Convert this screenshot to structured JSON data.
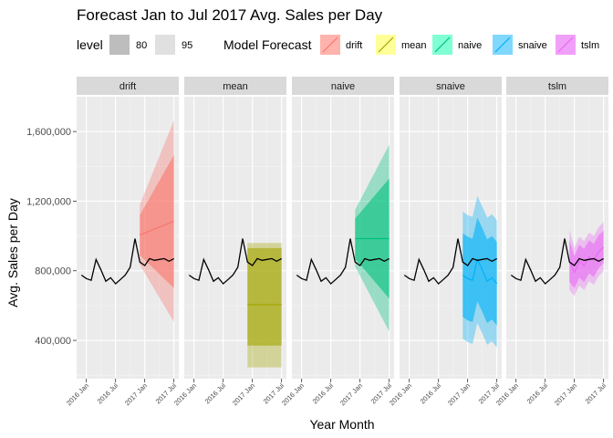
{
  "chart_data": {
    "type": "line",
    "title": "Forecast Jan to Jul 2017 Avg. Sales per Day",
    "xlabel": "Year Month",
    "ylabel": "Avg. Sales per Day",
    "ylim": [
      180000,
      1800000
    ],
    "y_ticks": [
      400000,
      800000,
      1200000,
      1600000
    ],
    "y_tick_labels": [
      "400,000",
      "800,000",
      "1,200,000",
      "1,600,000"
    ],
    "x_ticks": [
      "2016-01",
      "2016-07",
      "2017-01",
      "2017-07"
    ],
    "x_tick_labels": [
      "2016 Jan",
      "2016 Jul",
      "2017 Jan",
      "2017 Jul"
    ],
    "grid": true,
    "legend": {
      "placement": "top",
      "level_title": "level",
      "levels": [
        {
          "label": "80",
          "color": "#bdbdbd"
        },
        {
          "label": "95",
          "color": "#e0e0e0"
        }
      ],
      "model_title": "Model Forecast",
      "models": [
        {
          "label": "drift",
          "color": "#f8766d",
          "fill": "#ffb3ad"
        },
        {
          "label": "mean",
          "color": "#a3a500",
          "fill": "#ffff99"
        },
        {
          "label": "naive",
          "color": "#00bf7d",
          "fill": "#80ffd4"
        },
        {
          "label": "snaive",
          "color": "#00b0f6",
          "fill": "#80d8ff"
        },
        {
          "label": "tslm",
          "color": "#e76bf3",
          "fill": "#f0a0f8"
        }
      ]
    },
    "facets": [
      "drift",
      "mean",
      "naive",
      "snaive",
      "tslm"
    ],
    "history": {
      "x": [
        "2015-12",
        "2016-01",
        "2016-02",
        "2016-03",
        "2016-04",
        "2016-05",
        "2016-06",
        "2016-07",
        "2016-08",
        "2016-09",
        "2016-10",
        "2016-11",
        "2016-12"
      ],
      "values": [
        775000,
        755000,
        745000,
        865000,
        805000,
        740000,
        760000,
        725000,
        750000,
        775000,
        820000,
        985000,
        850000
      ]
    },
    "actual": {
      "x": [
        "2016-12",
        "2017-01",
        "2017-02",
        "2017-03",
        "2017-04",
        "2017-05",
        "2017-06",
        "2017-07"
      ],
      "values": [
        850000,
        830000,
        870000,
        860000,
        865000,
        870000,
        855000,
        870000
      ]
    },
    "forecasts": [
      {
        "name": "drift",
        "x": [
          "2016-12",
          "2017-07"
        ],
        "mean": [
          1005000,
          1085000
        ],
        "lo80": [
          890000,
          700000
        ],
        "hi80": [
          1120000,
          1465000
        ],
        "lo95": [
          835000,
          505000
        ],
        "hi95": [
          1180000,
          1665000
        ]
      },
      {
        "name": "mean",
        "x": [
          "2016-12",
          "2017-07"
        ],
        "mean": [
          605000,
          605000
        ],
        "lo80": [
          370000,
          370000
        ],
        "hi80": [
          930000,
          930000
        ],
        "lo95": [
          245000,
          245000
        ],
        "hi95": [
          960000,
          960000
        ]
      },
      {
        "name": "naive",
        "x": [
          "2016-12",
          "2017-07"
        ],
        "mean": [
          985000,
          985000
        ],
        "lo80": [
          870000,
          640000
        ],
        "hi80": [
          1100000,
          1330000
        ],
        "lo95": [
          825000,
          450000
        ],
        "hi95": [
          1150000,
          1525000
        ]
      },
      {
        "name": "snaive",
        "x": [
          "2016-12",
          "2017-01",
          "2017-02",
          "2017-03",
          "2017-04",
          "2017-05",
          "2017-06",
          "2017-07"
        ],
        "mean": [
          775000,
          755000,
          745000,
          865000,
          805000,
          740000,
          760000,
          725000
        ],
        "lo80": [
          535000,
          515000,
          505000,
          625000,
          565000,
          500000,
          520000,
          485000
        ],
        "hi80": [
          1015000,
          995000,
          985000,
          1105000,
          1045000,
          980000,
          1000000,
          965000
        ],
        "lo95": [
          410000,
          390000,
          380000,
          500000,
          440000,
          375000,
          395000,
          360000
        ],
        "hi95": [
          1140000,
          1120000,
          1110000,
          1230000,
          1170000,
          1105000,
          1125000,
          1090000
        ]
      },
      {
        "name": "tslm",
        "x": [
          "2016-12",
          "2017-01",
          "2017-02",
          "2017-03",
          "2017-04",
          "2017-05",
          "2017-06",
          "2017-07"
        ],
        "mean": [
          855000,
          790000,
          855000,
          830000,
          880000,
          860000,
          910000,
          935000
        ],
        "lo80": [
          735000,
          700000,
          760000,
          735000,
          785000,
          765000,
          815000,
          845000
        ],
        "hi80": [
          975000,
          885000,
          950000,
          925000,
          975000,
          955000,
          1005000,
          1030000
        ],
        "lo95": [
          690000,
          655000,
          715000,
          690000,
          740000,
          720000,
          770000,
          800000
        ],
        "hi95": [
          1035000,
          930000,
          995000,
          970000,
          1020000,
          1000000,
          1050000,
          1080000
        ]
      }
    ]
  }
}
